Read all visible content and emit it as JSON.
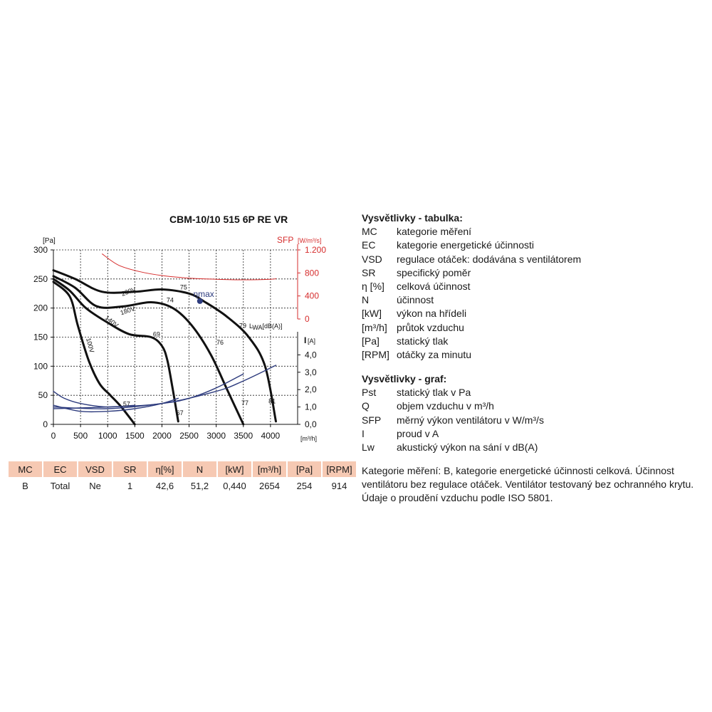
{
  "title": "CBM-10/10 515 6P RE VR",
  "chart_data": {
    "type": "line",
    "title": "CBM-10/10 515 6P RE VR",
    "x_axis": {
      "label": "[m³/h]",
      "range": [
        0,
        4500
      ],
      "ticks": [
        0,
        500,
        1000,
        1500,
        2000,
        2500,
        3000,
        3500,
        4000
      ],
      "tick_labels": [
        "0",
        "500",
        "1000",
        "1500",
        "2000",
        "2500",
        "3000",
        "3500",
        "4000"
      ]
    },
    "y_axis_left": {
      "label": "[Pa]",
      "range": [
        0,
        300
      ],
      "ticks": [
        0,
        50,
        100,
        150,
        200,
        250,
        300
      ],
      "tick_labels": [
        "0",
        "50",
        "100",
        "150",
        "200",
        "250",
        "300"
      ]
    },
    "y_axis_sfp": {
      "label": "SFP",
      "unit": "[W/m³/s]",
      "color": "#d62d2d",
      "range": [
        0,
        1200
      ],
      "ticks": [
        0,
        400,
        800,
        1200
      ],
      "tick_labels": [
        "0",
        "400",
        "800",
        "1.200"
      ]
    },
    "y_axis_current": {
      "label": "I",
      "unit": "[A]",
      "range": [
        0,
        5
      ],
      "ticks": [
        0,
        1,
        2,
        3,
        4
      ],
      "tick_labels": [
        "0,0",
        "1,0",
        "2,0",
        "3,0",
        "4,0"
      ]
    },
    "grid": true,
    "series": [
      {
        "name": "230V",
        "color": "#111111",
        "x": [
          0,
          400,
          900,
          1500,
          2000,
          2500,
          2800,
          3200,
          3600,
          3900,
          4100
        ],
        "y": [
          265,
          250,
          228,
          228,
          232,
          225,
          210,
          185,
          150,
          100,
          5
        ]
      },
      {
        "name": "180V",
        "color": "#111111",
        "x": [
          0,
          400,
          800,
          1300,
          1800,
          2200,
          2550,
          2900,
          3200,
          3500
        ],
        "y": [
          255,
          235,
          203,
          203,
          210,
          200,
          170,
          120,
          60,
          0
        ]
      },
      {
        "name": "140V",
        "color": "#111111",
        "x": [
          0,
          300,
          600,
          1000,
          1400,
          1800,
          2000,
          2100,
          2200,
          2300
        ],
        "y": [
          250,
          230,
          200,
          175,
          155,
          150,
          135,
          110,
          60,
          5
        ]
      },
      {
        "name": "100V",
        "color": "#111111",
        "x": [
          0,
          300,
          450,
          650,
          850,
          1050,
          1250,
          1500
        ],
        "y": [
          245,
          220,
          170,
          110,
          70,
          50,
          30,
          0
        ]
      },
      {
        "name": "SFP",
        "axis": "sfp",
        "color": "#d62d2d",
        "x": [
          900,
          1200,
          1600,
          2000,
          2500,
          3000,
          3500,
          4000,
          4100
        ],
        "y": [
          1130,
          935,
          820,
          755,
          710,
          690,
          680,
          690,
          700
        ]
      },
      {
        "name": "I 230V",
        "axis": "current",
        "color": "#2e3c7e",
        "x": [
          0,
          1000,
          2000,
          3000,
          3500,
          4100
        ],
        "y": [
          0.9,
          1.0,
          1.2,
          1.9,
          2.5,
          3.4
        ]
      },
      {
        "name": "I 180V",
        "axis": "current",
        "color": "#2e3c7e",
        "x": [
          0,
          1000,
          2000,
          2500,
          3000,
          3500
        ],
        "y": [
          1.0,
          0.9,
          1.2,
          1.5,
          2.1,
          2.9
        ]
      },
      {
        "name": "I 140V",
        "axis": "current",
        "color": "#2e3c7e",
        "x": [
          0,
          500,
          1000,
          1500,
          2000,
          2300
        ],
        "y": [
          1.1,
          0.75,
          0.75,
          0.9,
          1.2,
          1.5
        ]
      },
      {
        "name": "I 100V",
        "axis": "current",
        "color": "#2e3c7e",
        "x": [
          0,
          200,
          500,
          1000,
          1500
        ],
        "y": [
          1.9,
          1.5,
          1.2,
          1.0,
          1.1
        ]
      }
    ],
    "annotations": [
      {
        "text": "230V",
        "x": 1400,
        "y": 225,
        "rotate": -20
      },
      {
        "text": "180V",
        "x": 1380,
        "y": 192,
        "rotate": -18
      },
      {
        "text": "140V",
        "x": 1050,
        "y": 174,
        "rotate": 38
      },
      {
        "text": "100V",
        "x": 640,
        "y": 135,
        "rotate": 75
      },
      {
        "text": "75",
        "x": 2400,
        "y": 232
      },
      {
        "text": "74",
        "x": 2150,
        "y": 210
      },
      {
        "text": "69",
        "x": 1900,
        "y": 151
      },
      {
        "text": "76",
        "x": 3070,
        "y": 137
      },
      {
        "text": "79",
        "x": 3490,
        "y": 166
      },
      {
        "text": "57",
        "x": 1350,
        "y": 31
      },
      {
        "text": "67",
        "x": 2330,
        "y": 16
      },
      {
        "text": "77",
        "x": 3530,
        "y": 33
      },
      {
        "text": "81",
        "x": 4030,
        "y": 36
      },
      {
        "text": "ηmax",
        "x": 2770,
        "y": 219,
        "color": "#2e3c7e"
      }
    ],
    "lwa_label": {
      "main": "L",
      "sub": "WA",
      "unit": "[dB(A)]"
    },
    "eta_max": {
      "x": 2700,
      "y": 212,
      "color": "#2e3c7e"
    }
  },
  "table": {
    "headers": [
      "MC",
      "EC",
      "VSD",
      "SR",
      "η[%]",
      "N",
      "[kW]",
      "[m³/h]",
      "[Pa]",
      "[RPM]"
    ],
    "values": [
      "B",
      "Total",
      "Ne",
      "1",
      "42,6",
      "51,2",
      "0,440",
      "2654",
      "254",
      "914"
    ]
  },
  "legend_table": {
    "heading": "Vysvětlivky - tabulka:",
    "items": [
      {
        "key": "MC",
        "text": "kategorie měření"
      },
      {
        "key": "EC",
        "text": "kategorie energetické účinnosti"
      },
      {
        "key": "VSD",
        "text": "regulace otáček: dodávána s ventilátorem"
      },
      {
        "key": "SR",
        "text": "specifický poměr"
      },
      {
        "key": "η [%]",
        "text": "celková účinnost"
      },
      {
        "key": "N",
        "text": "účinnost"
      },
      {
        "key": "[kW]",
        "text": "výkon na hřídeli"
      },
      {
        "key": "[m³/h]",
        "text": "průtok vzduchu"
      },
      {
        "key": "[Pa]",
        "text": "statický tlak"
      },
      {
        "key": "[RPM]",
        "text": "otáčky za minutu"
      }
    ]
  },
  "legend_graph": {
    "heading": "Vysvětlivky - graf:",
    "items": [
      {
        "key": "Pst",
        "text": "statický tlak v Pa"
      },
      {
        "key": "Q",
        "text": "objem vzduchu v m³/h"
      },
      {
        "key": "SFP",
        "text": "měrný výkon ventilátoru v W/m³/s"
      },
      {
        "key": "I",
        "text": "proud v A"
      },
      {
        "key": "Lw",
        "text": "akustický výkon na sání v dB(A)"
      }
    ]
  },
  "note": "Kategorie měření: B, kategorie energetické účinnosti celková. Účinnost ventilátoru bez regulace otáček. Ventilátor testovaný bez ochranného krytu. Údaje o proudění vzduchu podle ISO 5801."
}
